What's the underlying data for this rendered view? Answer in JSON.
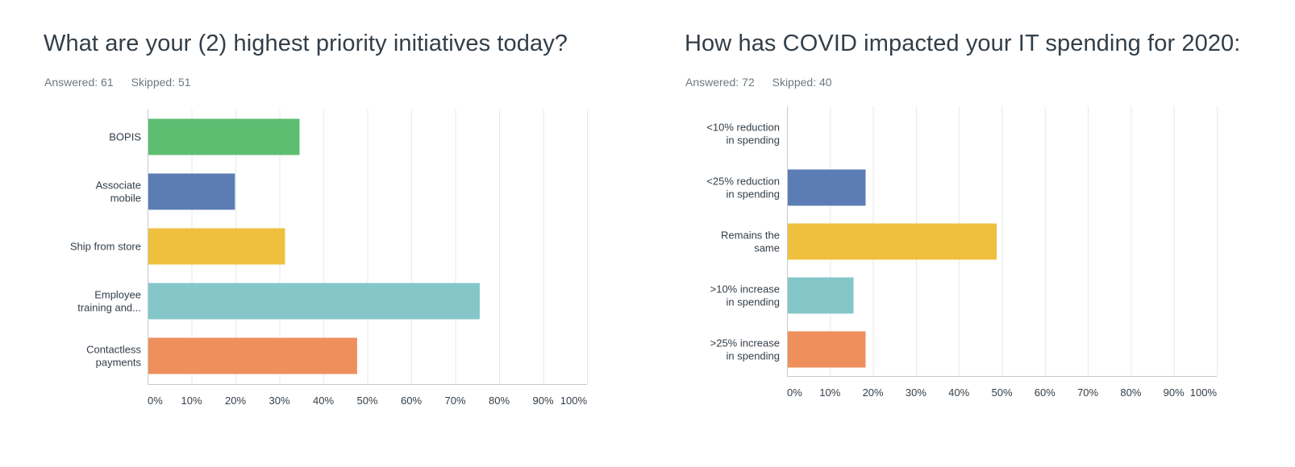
{
  "chart_data": [
    {
      "type": "bar",
      "orientation": "horizontal",
      "title": "What are your (2) highest priority initiatives today?",
      "answered": "Answered: 61",
      "skipped": "Skipped: 51",
      "categories": [
        [
          "BOPIS"
        ],
        [
          "Associate",
          "mobile"
        ],
        [
          "Ship from store"
        ],
        [
          "Employee",
          "training and..."
        ],
        [
          "Contactless",
          "payments"
        ]
      ],
      "values": [
        34.4,
        19.7,
        31.1,
        75.4,
        47.5
      ],
      "colors": [
        "#5dbe72",
        "#5b7db4",
        "#efbf3e",
        "#85c6c9",
        "#ee8f5c"
      ],
      "xlim": [
        0,
        100
      ],
      "xticks": [
        "0%",
        "10%",
        "20%",
        "30%",
        "40%",
        "50%",
        "60%",
        "70%",
        "80%",
        "90%",
        "100%"
      ],
      "grid": true
    },
    {
      "type": "bar",
      "orientation": "horizontal",
      "title": "How has COVID impacted your IT spending for 2020:",
      "answered": "Answered: 72",
      "skipped": "Skipped: 40",
      "categories": [
        [
          "<10% reduction",
          "in spending"
        ],
        [
          "<25% reduction",
          "in spending"
        ],
        [
          "Remains the",
          "same"
        ],
        [
          ">10% increase",
          "in spending"
        ],
        [
          ">25% increase",
          "in spending"
        ]
      ],
      "values": [
        0,
        18.1,
        48.6,
        15.3,
        18.1
      ],
      "colors": [
        "#5dbe72",
        "#5b7db4",
        "#efbf3e",
        "#85c6c9",
        "#ee8f5c"
      ],
      "xlim": [
        0,
        100
      ],
      "xticks": [
        "0%",
        "10%",
        "20%",
        "30%",
        "40%",
        "50%",
        "60%",
        "70%",
        "80%",
        "90%",
        "100%"
      ],
      "grid": true
    }
  ]
}
